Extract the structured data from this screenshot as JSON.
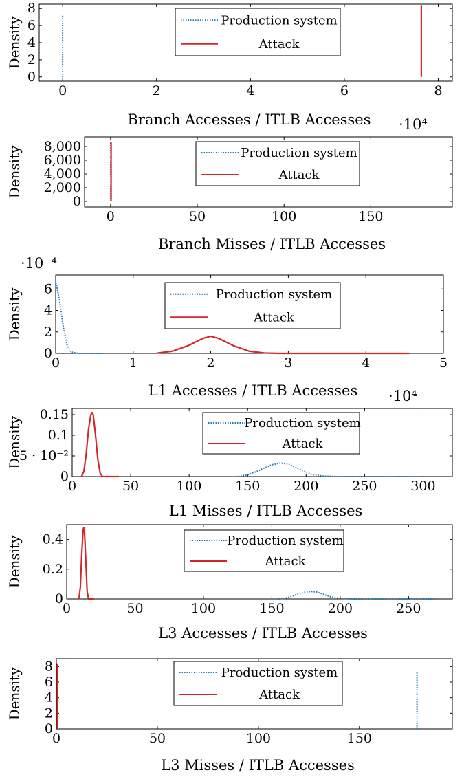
{
  "chart_data": [
    {
      "type": "line",
      "title": "",
      "xlabel": "Branch Accesses / ITLB Accesses",
      "ylabel": "Density",
      "xlim": [
        -0.5,
        8.3
      ],
      "ylim": [
        -0.5,
        8.5
      ],
      "xticks": [
        0,
        2,
        4,
        6,
        8
      ],
      "xtick_labels": [
        "0",
        "2",
        "4",
        "6",
        "8"
      ],
      "yticks": [
        0,
        2,
        4,
        6,
        8
      ],
      "ytick_labels": [
        "0",
        "2",
        "4",
        "6",
        "8"
      ],
      "exponent_label": "",
      "legend": "top-center",
      "series": [
        {
          "name": "Production system",
          "style": "dotted",
          "color": "#1f77b4",
          "x": [
            0.0,
            0.0
          ],
          "y": [
            0,
            7.3
          ]
        },
        {
          "name": "Attack",
          "style": "solid",
          "color": "#d62728",
          "x": [
            7.64,
            7.64
          ],
          "y": [
            0,
            8.4
          ]
        }
      ]
    },
    {
      "type": "line",
      "title": "",
      "xlabel": "Branch Misses / ITLB Accesses",
      "ylabel": "Density",
      "xlim": [
        -15,
        197
      ],
      "ylim": [
        -800,
        9400
      ],
      "xticks": [
        0,
        50,
        100,
        150
      ],
      "xtick_labels": [
        "0",
        "50",
        "100",
        "150"
      ],
      "yticks": [
        0,
        2000,
        4000,
        6000,
        8000
      ],
      "ytick_labels": [
        "0",
        "2,000",
        "4,000",
        "6,000",
        "8,000"
      ],
      "exponent_label": "·10⁴",
      "legend": "top-center",
      "series": [
        {
          "name": "Production system",
          "style": "dotted",
          "color": "#1f77b4",
          "x": [
            0.0,
            0.0
          ],
          "y": [
            0,
            8600
          ]
        },
        {
          "name": "Attack",
          "style": "solid",
          "color": "#d62728",
          "x": [
            0.3,
            0.3
          ],
          "y": [
            0,
            8600
          ]
        }
      ]
    },
    {
      "type": "line",
      "title": "",
      "xlabel": "L1 Accesses / ITLB Accesses",
      "ylabel": "Density",
      "xlim": [
        0,
        5
      ],
      "ylim": [
        0,
        7.3
      ],
      "xticks": [
        0,
        1,
        2,
        3,
        4,
        5
      ],
      "xtick_labels": [
        "0",
        "1",
        "2",
        "3",
        "4",
        "5"
      ],
      "yticks": [
        0,
        2,
        4,
        6
      ],
      "ytick_labels": [
        "0",
        "2",
        "4",
        "6"
      ],
      "exponent_label": "·10⁻⁴",
      "legend": "top-center",
      "series": [
        {
          "name": "Production system",
          "style": "dotted",
          "color": "#1f77b4",
          "x": [
            0,
            0.05,
            0.1,
            0.15,
            0.2,
            0.3,
            0.4,
            0.5,
            0.6
          ],
          "y": [
            6.8,
            4.9,
            2.4,
            0.7,
            0.12,
            0.0,
            0.0,
            0.0,
            0.0
          ]
        },
        {
          "name": "Attack",
          "style": "solid",
          "color": "#d62728",
          "x": [
            1.3,
            1.5,
            1.7,
            1.9,
            2.0,
            2.1,
            2.3,
            2.5,
            2.7,
            2.9,
            3.1,
            3.5,
            4.0,
            4.56
          ],
          "y": [
            0.02,
            0.2,
            0.7,
            1.4,
            1.6,
            1.4,
            0.7,
            0.2,
            0.03,
            0.0,
            0.0,
            0.0,
            0.0,
            0.0
          ]
        }
      ]
    },
    {
      "type": "line",
      "title": "",
      "xlabel": "L1 Misses / ITLB Accesses",
      "ylabel": "Density",
      "xlim": [
        0,
        325
      ],
      "ylim": [
        0,
        0.165
      ],
      "xticks": [
        0,
        50,
        100,
        150,
        200,
        250,
        300
      ],
      "xtick_labels": [
        "0",
        "50",
        "100",
        "150",
        "200",
        "250",
        "300"
      ],
      "yticks": [
        0,
        0.05,
        0.1,
        0.15
      ],
      "ytick_labels": [
        "0",
        "5 · 10⁻²",
        "0.1",
        "0.15"
      ],
      "exponent_label": "·10⁴",
      "legend": "top-right",
      "series": [
        {
          "name": "Production system",
          "style": "dotted",
          "color": "#1f77b4",
          "x": [
            140,
            150,
            160,
            170,
            178,
            185,
            195,
            205,
            215,
            230,
            260,
            300
          ],
          "y": [
            0.0,
            0.004,
            0.015,
            0.028,
            0.033,
            0.03,
            0.017,
            0.005,
            0.001,
            0.0,
            0.0,
            0.0
          ]
        },
        {
          "name": "Attack",
          "style": "solid",
          "color": "#d62728",
          "x": [
            8,
            10,
            12,
            14,
            16,
            17,
            18,
            20,
            22,
            24,
            26,
            30,
            40
          ],
          "y": [
            0.0,
            0.012,
            0.055,
            0.115,
            0.15,
            0.155,
            0.15,
            0.1,
            0.04,
            0.008,
            0.0,
            0.0,
            0.0
          ]
        }
      ]
    },
    {
      "type": "line",
      "title": "",
      "xlabel": "L3 Accesses / ITLB Accesses",
      "ylabel": "Density",
      "xlim": [
        0,
        282
      ],
      "ylim": [
        0,
        0.5
      ],
      "xticks": [
        0,
        50,
        100,
        150,
        200,
        250
      ],
      "xtick_labels": [
        "0",
        "50",
        "100",
        "150",
        "200",
        "250"
      ],
      "yticks": [
        0,
        0.2,
        0.4
      ],
      "ytick_labels": [
        "0",
        "0.2",
        "0.4"
      ],
      "exponent_label": "",
      "legend": "top-right",
      "series": [
        {
          "name": "Production system",
          "style": "dotted",
          "color": "#1f77b4",
          "x": [
            155,
            160,
            165,
            170,
            175,
            179,
            183,
            188,
            193,
            200,
            210,
            235,
            270
          ],
          "y": [
            0.0,
            0.005,
            0.018,
            0.035,
            0.047,
            0.05,
            0.046,
            0.03,
            0.014,
            0.003,
            0.0,
            0.0,
            0.0
          ]
        },
        {
          "name": "Attack",
          "style": "solid",
          "color": "#d62728",
          "x": [
            9,
            10,
            11,
            12,
            12.5,
            13,
            14,
            15,
            16,
            20
          ],
          "y": [
            0.0,
            0.08,
            0.3,
            0.46,
            0.48,
            0.46,
            0.25,
            0.05,
            0.0,
            0.0
          ]
        }
      ]
    },
    {
      "type": "line",
      "title": "",
      "xlabel": "L3 Misses / ITLB Accesses",
      "ylabel": "Density",
      "xlim": [
        0,
        196
      ],
      "ylim": [
        0,
        9
      ],
      "xticks": [
        0,
        50,
        100,
        150
      ],
      "xtick_labels": [
        "0",
        "50",
        "100",
        "150"
      ],
      "yticks": [
        0,
        2,
        4,
        6,
        8
      ],
      "ytick_labels": [
        "0",
        "2",
        "4",
        "6",
        "8"
      ],
      "exponent_label": "",
      "legend": "top-center",
      "series": [
        {
          "name": "Production system",
          "style": "dotted",
          "color": "#1f77b4",
          "x": [
            178.5,
            178.5
          ],
          "y": [
            0,
            7.3
          ]
        },
        {
          "name": "Attack",
          "style": "solid",
          "color": "#d62728",
          "x": [
            0.5,
            0.5
          ],
          "y": [
            0,
            8.4
          ]
        }
      ]
    }
  ]
}
